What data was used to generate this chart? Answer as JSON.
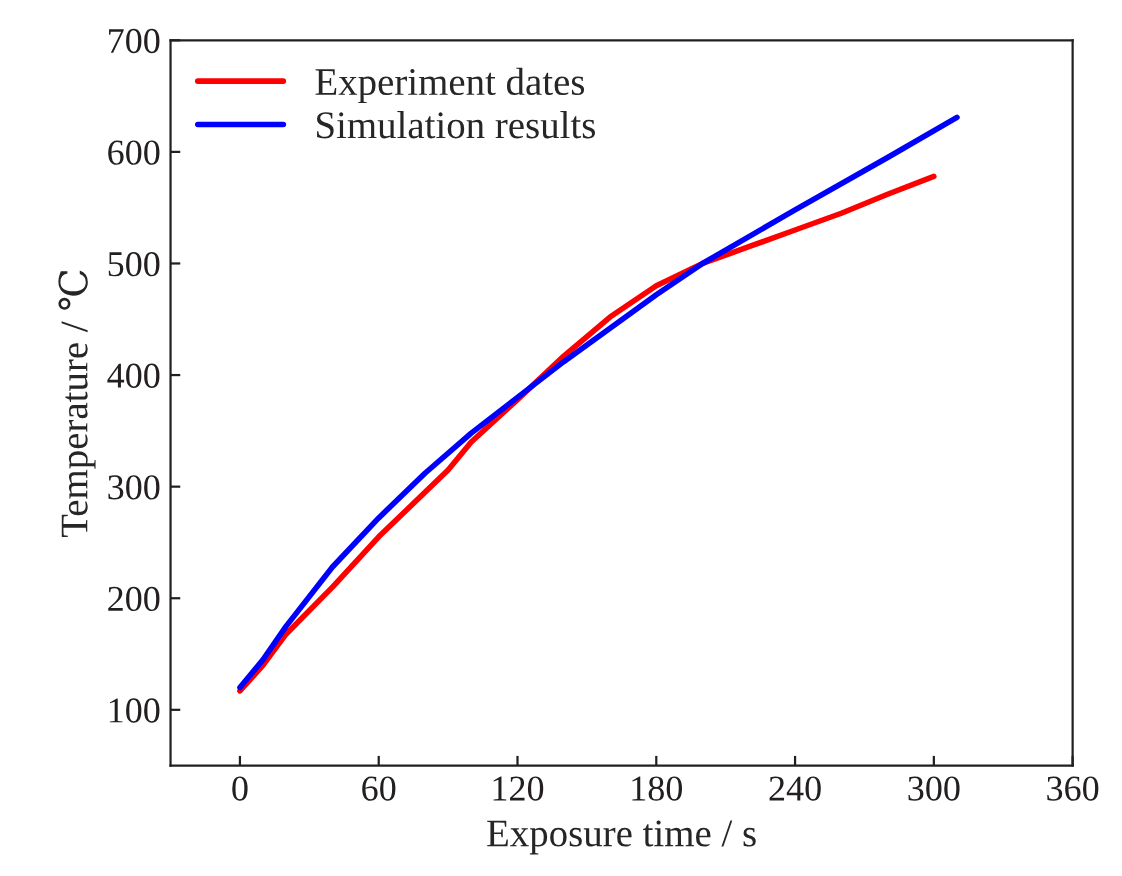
{
  "chart_data": {
    "type": "line",
    "xlabel": "Exposure time / s",
    "ylabel": "Temperature / ℃",
    "xlim": [
      -30,
      360
    ],
    "xticks": [
      0,
      60,
      120,
      180,
      240,
      300,
      360
    ],
    "ylim": [
      50,
      700
    ],
    "yticks": [
      100,
      200,
      300,
      400,
      500,
      600,
      700
    ],
    "grid": false,
    "legend": "top left",
    "marker": "none",
    "line_style": "solid",
    "series": [
      {
        "name": "Experiment dates",
        "color": "#ff0000",
        "x": [
          0,
          10,
          20,
          40,
          60,
          80,
          90,
          100,
          120,
          140,
          160,
          180,
          200,
          220,
          240,
          260,
          280,
          300
        ],
        "values": [
          117,
          140,
          168,
          210,
          255,
          295,
          315,
          340,
          378,
          417,
          452,
          480,
          500,
          515,
          530,
          545,
          562,
          578
        ]
      },
      {
        "name": "Simulation results",
        "color": "#0000ff",
        "x": [
          0,
          10,
          20,
          40,
          60,
          80,
          100,
          120,
          140,
          160,
          180,
          200,
          240,
          280,
          310
        ],
        "values": [
          120,
          145,
          175,
          228,
          272,
          312,
          348,
          380,
          412,
          442,
          472,
          500,
          548,
          595,
          631
        ]
      }
    ]
  }
}
